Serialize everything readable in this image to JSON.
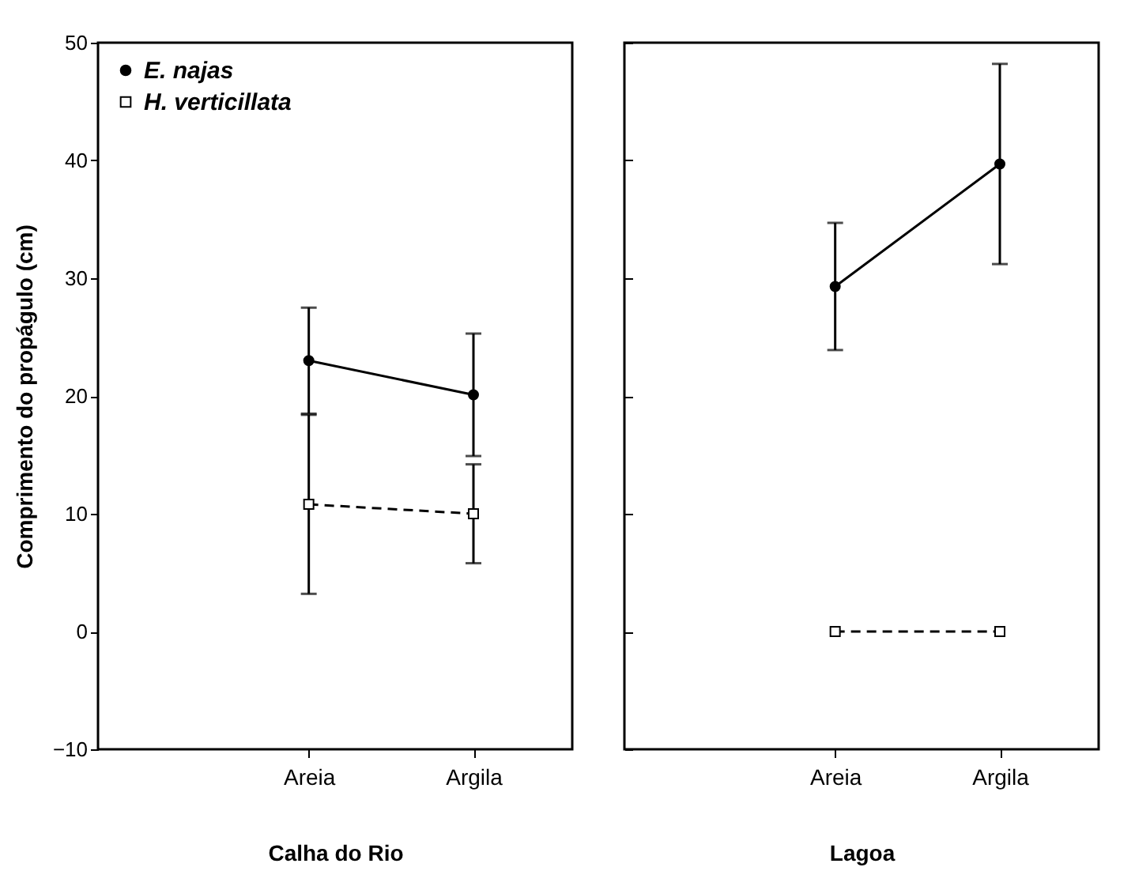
{
  "chart_data": [
    {
      "type": "line",
      "xlabel": "Calha do Rio",
      "ylabel": "Comprimento do propágulo (cm)",
      "categories": [
        "Areia",
        "Argila"
      ],
      "ylim": [
        -10,
        50
      ],
      "yticks": [
        -10,
        0,
        10,
        20,
        30,
        40,
        50
      ],
      "grid": false,
      "legend": "top left",
      "series": [
        {
          "name": "E. najas",
          "color": "#000000",
          "marker": "circle",
          "line_style": "solid",
          "values": [
            23.0,
            20.1
          ],
          "errors": [
            4.5,
            5.2
          ]
        },
        {
          "name": "H. verticillata",
          "color": "#000000",
          "marker": "square",
          "line_style": "dashed",
          "values": [
            10.8,
            10.0
          ],
          "errors": [
            7.6,
            4.2
          ]
        }
      ]
    },
    {
      "type": "line",
      "xlabel": "Lagoa",
      "categories": [
        "Areia",
        "Argila"
      ],
      "ylim": [
        -10,
        50
      ],
      "yticks": [
        -10,
        0,
        10,
        20,
        30,
        40,
        50
      ],
      "grid": false,
      "tick_labels": "x",
      "legend": false,
      "series": [
        {
          "color": "#000000",
          "marker": "circle",
          "line_style": "solid",
          "values": [
            29.3,
            39.7
          ],
          "errors": [
            5.4,
            8.5
          ]
        },
        {
          "color": "#000000",
          "marker": "square",
          "line_style": "dashed",
          "values": [
            0,
            0
          ],
          "errors": [
            null,
            null
          ]
        }
      ]
    }
  ]
}
